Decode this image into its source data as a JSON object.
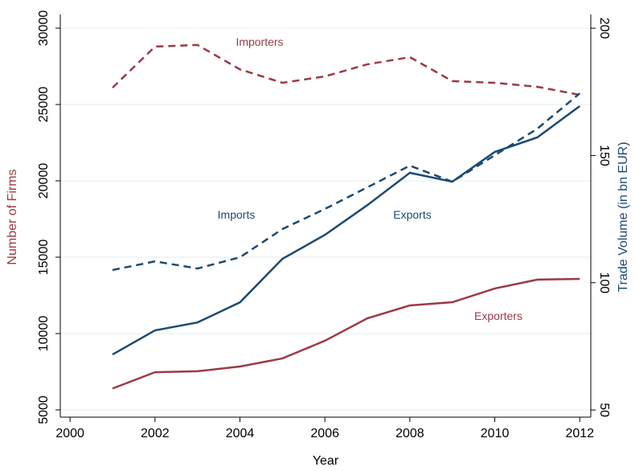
{
  "chart_data": {
    "type": "line",
    "x_label": "Year",
    "y_label": "Number of Firms",
    "y2_label": "Trade Volume (in bn EUR)",
    "y_label_color": "#9b3a44",
    "y2_label_color": "#1b4a72",
    "x": [
      2001,
      2002,
      2003,
      2004,
      2005,
      2006,
      2007,
      2008,
      2009,
      2010,
      2011,
      2012
    ],
    "series": [
      {
        "name": "Importers",
        "color": "#9b3a44",
        "dashed": true,
        "axis": "y",
        "values": [
          26100,
          28790,
          28900,
          27300,
          26420,
          26840,
          27630,
          28100,
          26530,
          26420,
          26160,
          25630
        ]
      },
      {
        "name": "Exporters",
        "color": "#9b3a44",
        "dashed": false,
        "axis": "y",
        "values": [
          6400,
          7470,
          7530,
          7840,
          8370,
          9530,
          11000,
          11840,
          12050,
          12950,
          13530,
          13580
        ]
      },
      {
        "name": "Imports",
        "color": "#1b4a72",
        "dashed": true,
        "axis": "y2",
        "values": [
          105.0,
          108.4,
          105.6,
          110.0,
          121.1,
          129.0,
          137.5,
          146.0,
          139.7,
          150.1,
          160.5,
          174.4
        ]
      },
      {
        "name": "Exports",
        "color": "#1b4a72",
        "dashed": false,
        "axis": "y2",
        "values": [
          71.8,
          81.3,
          84.4,
          92.3,
          109.4,
          118.8,
          130.5,
          143.2,
          139.7,
          151.4,
          157.1,
          169.4
        ]
      }
    ],
    "xlim": [
      1999.77,
      2012.26
    ],
    "xticks": [
      2000,
      2002,
      2004,
      2006,
      2008,
      2010,
      2012
    ],
    "ylim": [
      4526,
      30895
    ],
    "yticks": [
      5000,
      10000,
      15000,
      20000,
      25000,
      30000
    ],
    "y2lim": [
      47.2,
      205.4
    ],
    "y2ticks": [
      50,
      100,
      150,
      200
    ],
    "grid": true
  }
}
